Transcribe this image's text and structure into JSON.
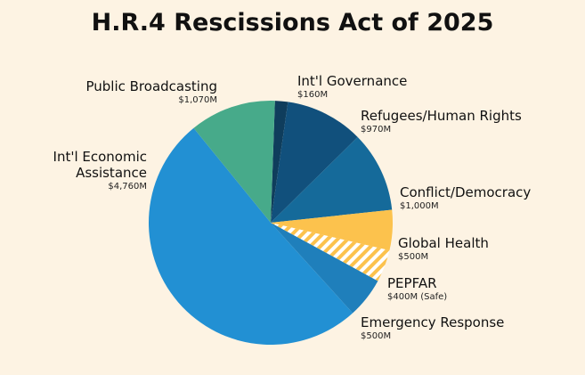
{
  "chart_data": {
    "type": "pie",
    "title": "H.R.4 Rescissions Act of 2025",
    "units": "$M",
    "slices": [
      {
        "name": "Int'l Governance",
        "label_lines": [
          "Int'l Governance"
        ],
        "value": 160,
        "value_label": "$160M",
        "color": "#0f3d5c",
        "pattern": "solid"
      },
      {
        "name": "Refugees/Human Rights",
        "label_lines": [
          "Refugees/Human Rights"
        ],
        "value": 970,
        "value_label": "$970M",
        "color": "#11507c",
        "pattern": "solid"
      },
      {
        "name": "Conflict/Democracy",
        "label_lines": [
          "Conflict/Democracy"
        ],
        "value": 1000,
        "value_label": "$1,000M",
        "color": "#156a9a",
        "pattern": "solid"
      },
      {
        "name": "Global Health",
        "label_lines": [
          "Global Health"
        ],
        "value": 500,
        "value_label": "$500M",
        "color": "#fcc24d",
        "pattern": "solid"
      },
      {
        "name": "PEPFAR",
        "label_lines": [
          "PEPFAR"
        ],
        "value": 400,
        "value_label": "$400M (Safe)",
        "color": "#fcc24d",
        "pattern": "hatched"
      },
      {
        "name": "Emergency Response",
        "label_lines": [
          "Emergency Response"
        ],
        "value": 500,
        "value_label": "$500M",
        "color": "#1f7fbb",
        "pattern": "solid"
      },
      {
        "name": "Int'l Economic Assistance",
        "label_lines": [
          "Int'l Economic",
          "Assistance"
        ],
        "value": 4760,
        "value_label": "$4,760M",
        "color": "#2290d3",
        "pattern": "solid"
      },
      {
        "name": "Public Broadcasting",
        "label_lines": [
          "Public Broadcasting"
        ],
        "value": 1070,
        "value_label": "$1,070M",
        "color": "#47aa8a",
        "pattern": "solid"
      }
    ]
  }
}
